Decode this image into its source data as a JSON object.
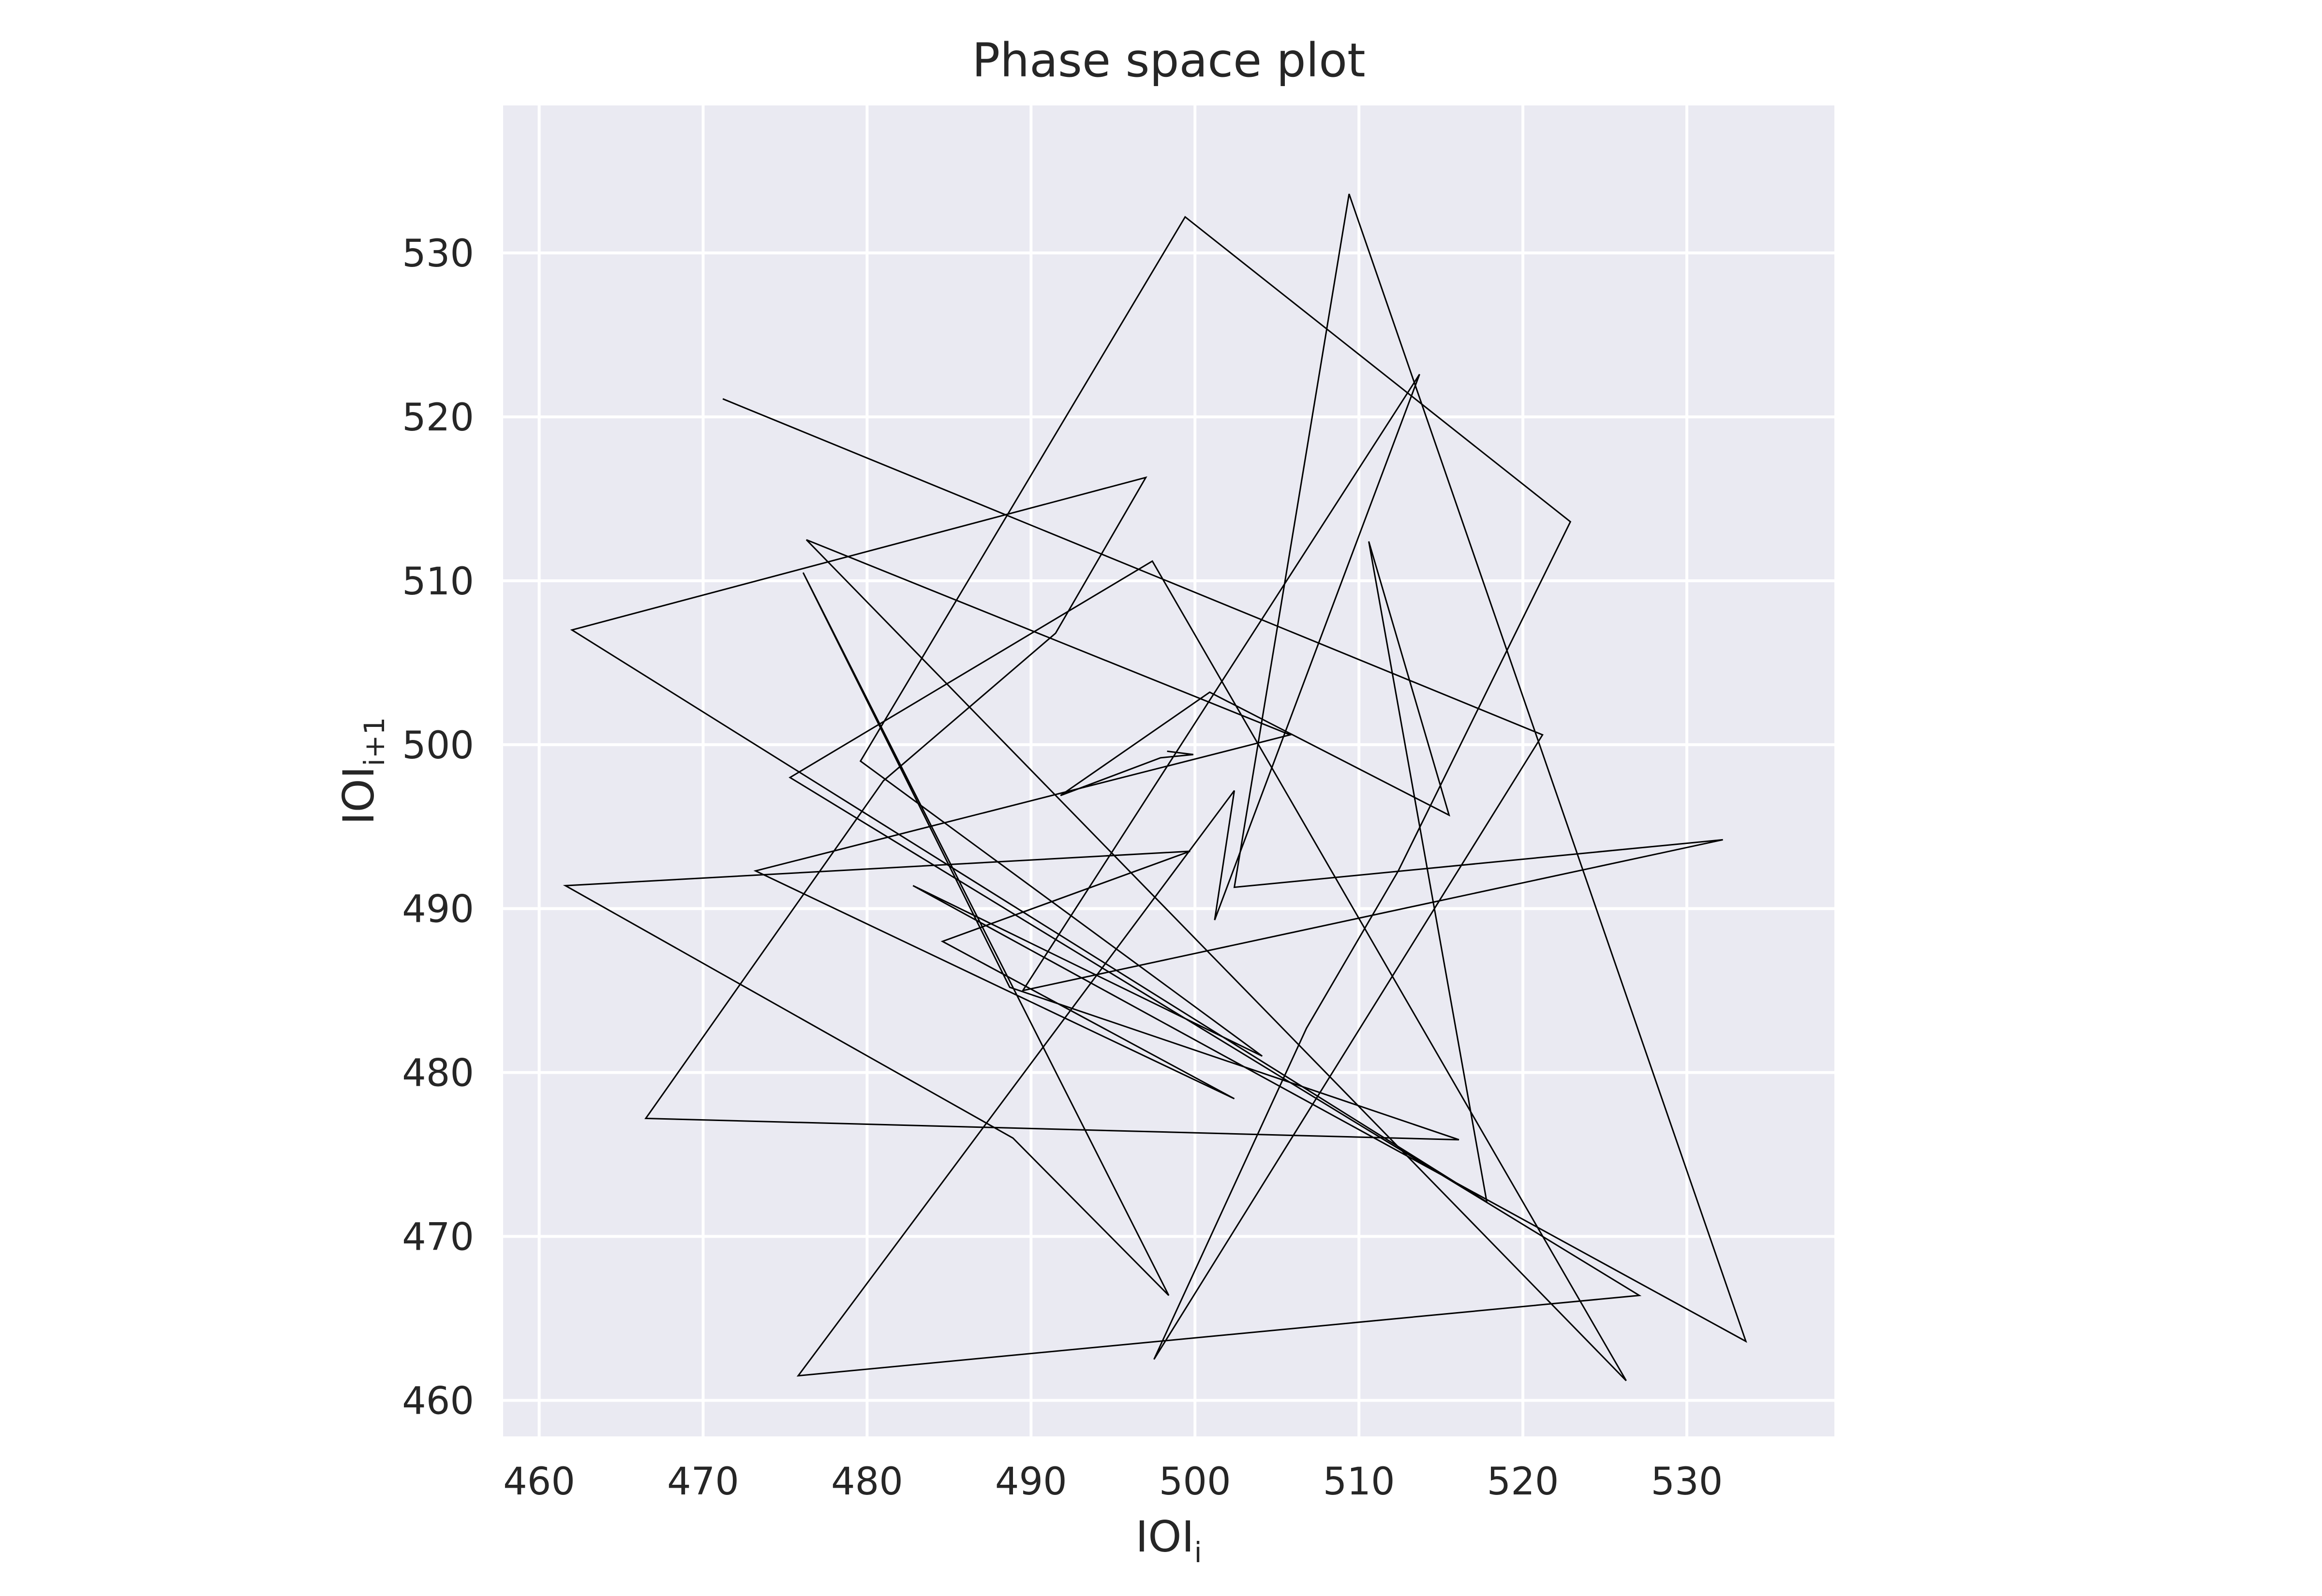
{
  "chart_data": {
    "type": "line",
    "title": "Phase space plot",
    "xlabel": {
      "base": "IOI",
      "sub": "i"
    },
    "ylabel": {
      "base": "IOI",
      "sub": "i+1"
    },
    "xlim": [
      457.8,
      539.0
    ],
    "ylim": [
      457.8,
      539.0
    ],
    "xticks": [
      "460",
      "470",
      "480",
      "490",
      "500",
      "510",
      "520",
      "530"
    ],
    "yticks": [
      "460",
      "470",
      "480",
      "490",
      "500",
      "510",
      "520",
      "530"
    ],
    "grid": true,
    "background": "#eaeaf2",
    "grid_color": "#ffffff",
    "line_color": "#000000",
    "series": [
      {
        "x": [
          471.2,
          521.2,
          497.5,
          506.8,
          512.4,
          522.9,
          499.4,
          479.6,
          504.1,
          482.8,
          533.6,
          509.4,
          502.4,
          532.2,
          489.5,
          513.7,
          501.2,
          502.4,
          475.8,
          527.1,
          475.3,
          497.4,
          526.3,
          476.3,
          505.8,
          473.2,
          502.4,
          484.6,
          499.7,
          461.6,
          488.9,
          498.4,
          476.1,
          488.7,
          516.1,
          466.5,
          481.0,
          491.5,
          497.0,
          462.0,
          517.8,
          510.6,
          515.5,
          500.9,
          491.8,
          497.9,
          499.9,
          498.3
        ],
        "y": [
          521.1,
          500.6,
          462.5,
          482.7,
          492.3,
          513.6,
          532.2,
          499.0,
          481.0,
          491.4,
          463.6,
          533.6,
          491.3,
          494.2,
          485.0,
          522.6,
          489.3,
          497.2,
          461.5,
          466.4,
          498.0,
          511.2,
          461.2,
          512.5,
          500.6,
          492.3,
          478.4,
          488.0,
          493.5,
          491.4,
          476.0,
          466.4,
          510.5,
          485.2,
          475.9,
          477.2,
          497.8,
          506.8,
          516.3,
          507.0,
          472.1,
          512.4,
          495.7,
          503.2,
          496.9,
          499.2,
          499.4,
          499.6
        ]
      }
    ]
  }
}
